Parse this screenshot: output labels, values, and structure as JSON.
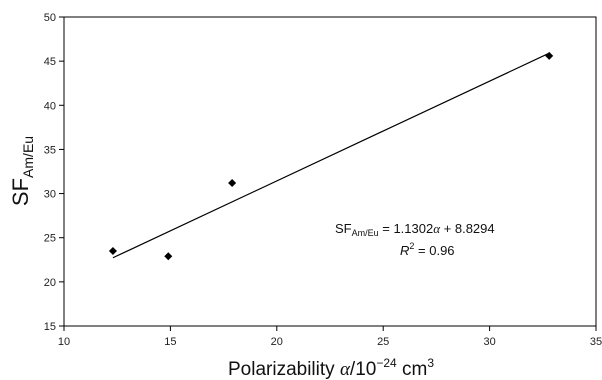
{
  "chart_data": {
    "type": "scatter",
    "xlabel": {
      "main": "Polarizability ",
      "symbol": "α",
      "rest": "/10",
      "exp": "−24",
      "unit": " cm",
      "unit_exp": "3"
    },
    "ylabel": {
      "main": "SF",
      "sub": "Am/Eu"
    },
    "xlim": [
      10,
      35
    ],
    "ylim": [
      15,
      50
    ],
    "x_ticks": [
      "10",
      "15",
      "20",
      "25",
      "30",
      "35"
    ],
    "y_ticks": [
      "15",
      "20",
      "25",
      "30",
      "35",
      "40",
      "45",
      "50"
    ],
    "grid": false,
    "series": [
      {
        "marker": "diamond",
        "color": "#000000",
        "points": [
          {
            "x": 12.3,
            "y": 23.5
          },
          {
            "x": 14.9,
            "y": 22.9
          },
          {
            "x": 17.9,
            "y": 31.2
          },
          {
            "x": 32.8,
            "y": 45.6
          }
        ]
      }
    ],
    "fit_line": {
      "slope": 1.1302,
      "intercept": 8.8294,
      "x_range": [
        12.3,
        32.8
      ]
    },
    "annotation": {
      "eq_prefix": "SF",
      "eq_sub": "Am/Eu",
      "eq_mid": " = 1.1302",
      "eq_symbol": "α",
      "eq_rest": " + 8.8294",
      "r2_label": "R",
      "r2_exp": "2",
      "r2_value": " = 0.96"
    }
  }
}
